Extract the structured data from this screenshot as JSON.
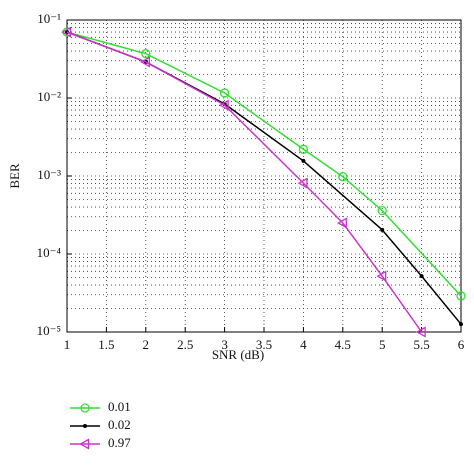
{
  "chart_data": {
    "type": "line",
    "xlabel": "SNR (dB)",
    "ylabel": "BER",
    "xlim": [
      1,
      6
    ],
    "xticks": [
      1,
      1.5,
      2,
      2.5,
      3,
      3.5,
      4,
      4.5,
      5,
      5.5,
      6
    ],
    "ylim": [
      1e-05,
      0.1
    ],
    "ylog": true,
    "yticks": [
      {
        "value": 0.1,
        "label": "10⁻¹"
      },
      {
        "value": 0.01,
        "label": "10⁻²"
      },
      {
        "value": 0.001,
        "label": "10⁻³"
      },
      {
        "value": 0.0001,
        "label": "10⁻⁴"
      },
      {
        "value": 1e-05,
        "label": "10⁻⁵"
      }
    ],
    "grid": true,
    "series": [
      {
        "name": "0.01",
        "color": "#33dd33",
        "marker": "circle",
        "x": [
          1,
          2,
          3,
          4,
          4.5,
          5,
          6
        ],
        "values": [
          0.07,
          0.037,
          0.0116,
          0.0022,
          0.00098,
          0.00036,
          2.9e-05
        ]
      },
      {
        "name": "0.02",
        "color": "#000000",
        "marker": "dot",
        "x": [
          1,
          2,
          3,
          4,
          5,
          5.5,
          6
        ],
        "values": [
          0.07,
          0.029,
          0.0084,
          0.00156,
          0.000204,
          5.2e-05,
          1.26e-05
        ]
      },
      {
        "name": "0.97",
        "color": "#cc33cc",
        "marker": "triangle-left",
        "x": [
          1,
          2,
          3,
          4,
          4.5,
          5,
          5.5
        ],
        "values": [
          0.07,
          0.029,
          0.0081,
          0.00081,
          0.00025,
          5.2e-05,
          1e-05
        ]
      }
    ]
  }
}
